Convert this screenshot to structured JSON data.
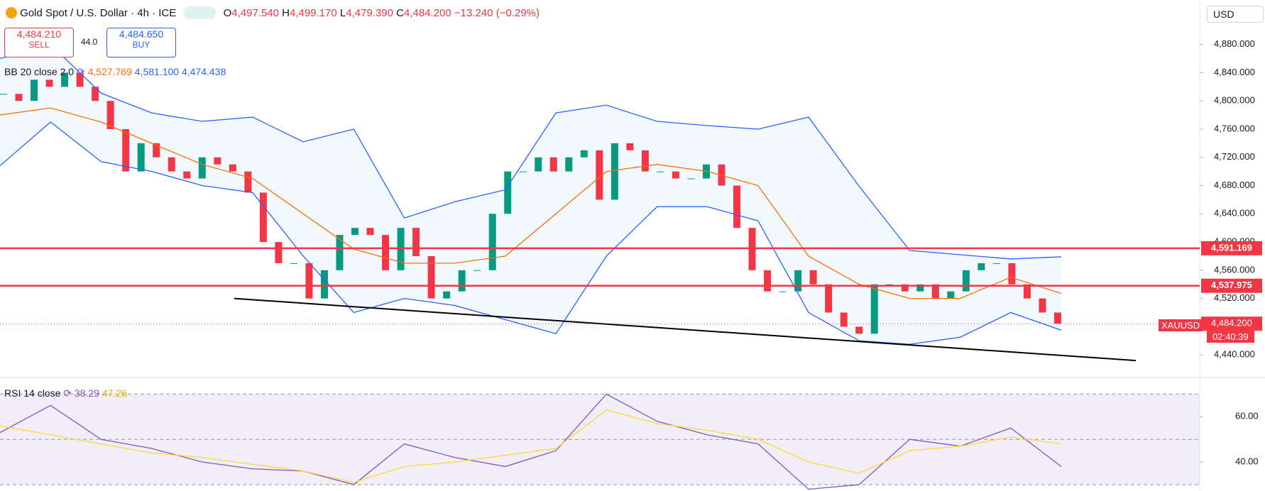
{
  "header": {
    "symbol": "Gold Spot / U.S. Dollar · 4h · ICE",
    "open_label": "O",
    "open": "4,497.540",
    "high_label": "H",
    "high": "4,499.170",
    "low_label": "L",
    "low": "4,479.390",
    "close_label": "C",
    "close": "4,484.200",
    "change": "−13.240 (−0.29%)",
    "sell_price": "4,484.210",
    "sell": "SELL",
    "spread": "44.0",
    "buy_price": "4,484.650",
    "buy": "BUY",
    "currency": "USD",
    "bb_label": "BB 20 close 2 0",
    "bb_basis": "4,527.769",
    "bb_upper": "4,581.100",
    "bb_lower": "4,474.438",
    "rsi_label": "RSI 14 close",
    "rsi_value": "38.29",
    "rsi_ma": "47.26",
    "symbol_tag": "XAUUSD",
    "countdown": "02:40:39"
  },
  "chart_data": [
    {
      "type": "candlestick",
      "values": [
        4810,
        4800,
        4830,
        4820,
        4840,
        4820,
        4800,
        4760,
        4700,
        4740,
        4720,
        4700,
        4690,
        4720,
        4710,
        4700,
        4670,
        4600,
        4570,
        4570,
        4520,
        4560,
        4610,
        4620,
        4610,
        4560,
        4620,
        4580,
        4520,
        4530,
        4560,
        4560,
        4640,
        4700,
        4700,
        4720,
        4700,
        4720,
        4730,
        4660,
        4740,
        4730,
        4700,
        4700,
        4690,
        4690,
        4710,
        4680,
        4620,
        4560,
        4530,
        4530,
        4560,
        4540,
        4500,
        4480,
        4470,
        4540,
        4540,
        4530,
        4540,
        4520,
        4530,
        4560,
        4570,
        4570,
        4540,
        4520,
        4500,
        4484.2
      ],
      "color_up": "#089981",
      "color_down": "#f23645",
      "series": [
        {
          "name": "BB upper",
          "color": "#2962ff",
          "values": [
            4860,
            4880,
            4811,
            4783,
            4771,
            4777,
            4742,
            4760,
            4634,
            4657,
            4674,
            4783,
            4794,
            4771,
            4765,
            4760,
            4777,
            4679,
            4588,
            4582,
            4576,
            4579
          ]
        },
        {
          "name": "BB basis",
          "color": "#ff6d00",
          "values": [
            4780,
            4790,
            4770,
            4740,
            4710,
            4690,
            4640,
            4590,
            4570,
            4570,
            4580,
            4640,
            4700,
            4710,
            4700,
            4680,
            4580,
            4540,
            4520,
            4520,
            4550,
            4527
          ]
        },
        {
          "name": "BB lower",
          "color": "#2962ff",
          "values": [
            4708,
            4770,
            4714,
            4700,
            4680,
            4670,
            4580,
            4500,
            4520,
            4510,
            4490,
            4470,
            4580,
            4650,
            4650,
            4630,
            4500,
            4460,
            4455,
            4465,
            4500,
            4475
          ]
        }
      ],
      "hlines": [
        {
          "value": 4591.169,
          "label": "4,591.169"
        },
        {
          "value": 4537.975,
          "label": "4,537.975"
        }
      ],
      "last_price": {
        "value": 4484.2,
        "label": "4,484.200"
      },
      "trend_line": [
        4520,
        4432
      ],
      "ylim": [
        4410,
        4943
      ],
      "yticks": [
        {
          "value": 4440,
          "label": "4,440.000"
        },
        {
          "value": 4480,
          "label": "4,480.000"
        },
        {
          "value": 4520,
          "label": "4,520.000"
        },
        {
          "value": 4560,
          "label": "4,560.000"
        },
        {
          "value": 4600,
          "label": "4,600.000"
        },
        {
          "value": 4640,
          "label": "4,640.000"
        },
        {
          "value": 4680,
          "label": "4,680.000"
        },
        {
          "value": 4720,
          "label": "4,720.000"
        },
        {
          "value": 4760,
          "label": "4,760.000"
        },
        {
          "value": 4800,
          "label": "4,800.000"
        },
        {
          "value": 4840,
          "label": "4,840.000"
        },
        {
          "value": 4880,
          "label": "4,880.000"
        }
      ]
    },
    {
      "type": "line",
      "series": [
        {
          "name": "RSI",
          "color": "#7e57c2",
          "values": [
            53,
            65,
            50,
            46,
            40,
            37,
            36,
            30,
            48,
            42,
            38,
            45,
            70,
            58,
            52,
            48,
            28,
            30,
            50,
            47,
            55,
            38
          ]
        },
        {
          "name": "RSI MA",
          "color": "#fdd835",
          "values": [
            56,
            52,
            48,
            44,
            42,
            39,
            36,
            31,
            38,
            40,
            43,
            46,
            63,
            57,
            54,
            50,
            40,
            35,
            45,
            47,
            51,
            48
          ]
        }
      ],
      "bands": [
        70,
        50,
        30
      ],
      "ylim": [
        27.2,
        76.7
      ],
      "yticks": [
        {
          "value": 60,
          "label": "60.00"
        },
        {
          "value": 40,
          "label": "40.00"
        }
      ]
    }
  ]
}
